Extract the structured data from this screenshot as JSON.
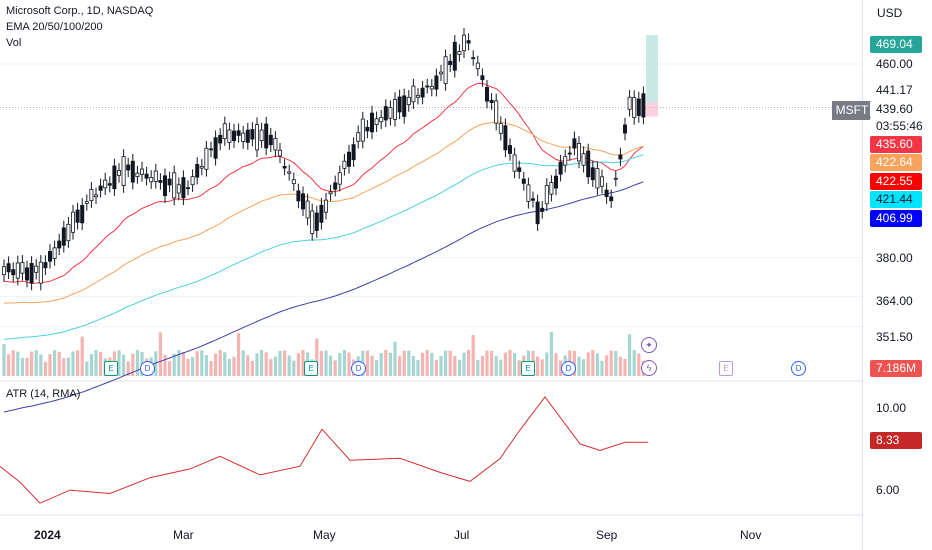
{
  "header": {
    "title": "Microsoft Corp., 1D, NASDAQ",
    "indicator": "EMA 20/50/100/200",
    "volume": "Vol",
    "atr_label": "ATR (14, RMA)"
  },
  "axis": {
    "currency": "USD",
    "price_ticks": [
      "460.00",
      "380.00",
      "364.00",
      "351.50"
    ],
    "atr_ticks": [
      "10.00",
      "6.00"
    ],
    "x_ticks": [
      "2024",
      "Mar",
      "May",
      "Jul",
      "Sep",
      "Nov"
    ]
  },
  "tags": {
    "target": "469.04",
    "high": "441.17",
    "last": "439.60",
    "countdown": "03:55:46",
    "symbol": "MSFT",
    "ema20": "435.60",
    "ema50": "422.64",
    "ema_red": "422.55",
    "ema100": "421.44",
    "ema200": "406.99",
    "volume": "7.186M",
    "atr": "8.33"
  },
  "events": {
    "earnings": "E",
    "dividend": "D"
  },
  "colors": {
    "up": "#26a69a",
    "down": "#ef5350",
    "ema20": "#f23645",
    "ema50": "#f7a35c",
    "ema100": "#4dd0e1",
    "ema200": "#3f3fa8",
    "atr": "#d32f2f"
  },
  "chart_data": {
    "type": "candlestick",
    "title": "Microsoft Corp., 1D, NASDAQ",
    "price_axis": {
      "ticks": [
        460,
        380,
        364,
        351.5
      ]
    },
    "x_ticks": [
      "2024",
      "Mar",
      "May",
      "Jul",
      "Sep",
      "Nov"
    ],
    "price_series_approx": [
      {
        "date": "2023-12-20",
        "close": 372
      },
      {
        "date": "2024-01-02",
        "close": 371
      },
      {
        "date": "2024-01-24",
        "close": 402
      },
      {
        "date": "2024-02-08",
        "close": 414
      },
      {
        "date": "2024-03-05",
        "close": 405
      },
      {
        "date": "2024-03-21",
        "close": 428
      },
      {
        "date": "2024-04-11",
        "close": 427
      },
      {
        "date": "2024-04-30",
        "close": 390
      },
      {
        "date": "2024-05-21",
        "close": 430
      },
      {
        "date": "2024-06-21",
        "close": 449
      },
      {
        "date": "2024-07-05",
        "close": 467
      },
      {
        "date": "2024-07-25",
        "close": 418
      },
      {
        "date": "2024-08-05",
        "close": 395
      },
      {
        "date": "2024-08-20",
        "close": 424
      },
      {
        "date": "2024-09-06",
        "close": 401
      },
      {
        "date": "2024-09-13",
        "close": 439.6
      }
    ],
    "emas_last": {
      "EMA20": 435.6,
      "EMA50": 422.64,
      "EMA100": 421.44,
      "EMA200": 406.99
    },
    "volume_last": "7.186M",
    "atr": {
      "label": "ATR (14, RMA)",
      "last": 8.33,
      "ticks": [
        10.0,
        6.0
      ]
    }
  }
}
